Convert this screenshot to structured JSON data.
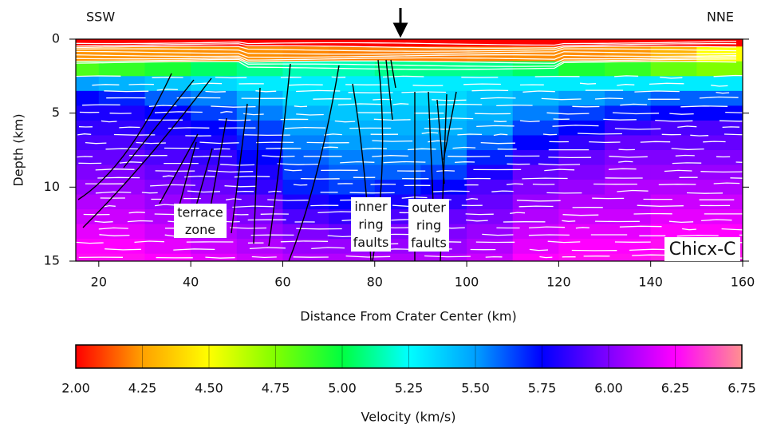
{
  "chart_data": {
    "type": "heatmap",
    "x_label": "Distance From Crater Center (km)",
    "y_label": "Depth (km)",
    "xlim": [
      15,
      160
    ],
    "xticks": [
      20,
      40,
      60,
      80,
      100,
      120,
      140,
      160
    ],
    "ylim": [
      0,
      15
    ],
    "yticks": [
      0,
      5,
      10,
      15
    ],
    "invert_y": true,
    "direction_labels": [
      "SSW",
      "NNE"
    ],
    "annotations": [
      {
        "text": [
          "terrace",
          "zone"
        ]
      },
      {
        "text": [
          "inner",
          "ring",
          "faults"
        ]
      },
      {
        "text": [
          "outer",
          "ring",
          "faults"
        ]
      },
      {
        "text": [
          "Chicx-C"
        ]
      }
    ],
    "x": [
      15,
      25,
      35,
      45,
      55,
      65,
      75,
      85,
      95,
      105,
      115,
      125,
      135,
      145,
      155
    ],
    "y": [
      0,
      1,
      2,
      3,
      4,
      5,
      6,
      7,
      8,
      9,
      10,
      11,
      12,
      13,
      14,
      15
    ],
    "values": [
      [
        2.0,
        2.0,
        2.0,
        2.0,
        2.0,
        2.0,
        2.0,
        2.0,
        2.0,
        2.0,
        2.0,
        2.0,
        2.0,
        2.0,
        2.0
      ],
      [
        4.1,
        4.1,
        4.1,
        4.0,
        4.0,
        3.9,
        3.8,
        3.8,
        3.8,
        3.9,
        4.0,
        4.0,
        4.1,
        4.3,
        4.5
      ],
      [
        4.85,
        4.9,
        4.95,
        5.05,
        5.1,
        5.15,
        5.15,
        5.1,
        5.1,
        5.1,
        5.05,
        4.95,
        4.9,
        4.8,
        4.75
      ],
      [
        5.5,
        5.45,
        5.4,
        5.35,
        5.3,
        5.3,
        5.3,
        5.3,
        5.3,
        5.3,
        5.3,
        5.3,
        5.3,
        5.3,
        5.3
      ],
      [
        5.75,
        5.7,
        5.6,
        5.55,
        5.45,
        5.35,
        5.35,
        5.35,
        5.35,
        5.4,
        5.45,
        5.5,
        5.55,
        5.6,
        5.6
      ],
      [
        5.8,
        5.8,
        5.75,
        5.65,
        5.55,
        5.45,
        5.4,
        5.4,
        5.4,
        5.45,
        5.55,
        5.65,
        5.7,
        5.75,
        5.75
      ],
      [
        5.85,
        5.85,
        5.8,
        5.75,
        5.65,
        5.5,
        5.45,
        5.45,
        5.45,
        5.5,
        5.65,
        5.75,
        5.85,
        5.9,
        5.9
      ],
      [
        5.9,
        5.9,
        5.85,
        5.8,
        5.7,
        5.55,
        5.5,
        5.5,
        5.5,
        5.6,
        5.75,
        5.85,
        5.95,
        5.95,
        5.95
      ],
      [
        5.95,
        5.95,
        5.9,
        5.85,
        5.75,
        5.6,
        5.55,
        5.55,
        5.55,
        5.7,
        5.85,
        5.95,
        6.0,
        6.0,
        6.0
      ],
      [
        6.0,
        6.0,
        5.95,
        5.9,
        5.8,
        5.65,
        5.6,
        5.6,
        5.65,
        5.8,
        5.95,
        6.0,
        6.05,
        6.05,
        6.05
      ],
      [
        6.05,
        6.05,
        6.0,
        5.95,
        5.85,
        5.7,
        5.65,
        5.7,
        5.75,
        5.9,
        6.0,
        6.05,
        6.1,
        6.1,
        6.1
      ],
      [
        6.1,
        6.1,
        6.05,
        6.0,
        5.95,
        5.8,
        5.75,
        5.8,
        5.85,
        5.95,
        6.05,
        6.1,
        6.1,
        6.15,
        6.15
      ],
      [
        6.15,
        6.15,
        6.1,
        6.05,
        6.0,
        5.9,
        5.85,
        5.9,
        5.95,
        6.0,
        6.1,
        6.15,
        6.15,
        6.2,
        6.2
      ],
      [
        6.2,
        6.2,
        6.15,
        6.1,
        6.05,
        6.0,
        5.95,
        6.0,
        6.0,
        6.05,
        6.15,
        6.2,
        6.2,
        6.25,
        6.25
      ],
      [
        6.25,
        6.25,
        6.2,
        6.15,
        6.1,
        6.05,
        6.05,
        6.05,
        6.05,
        6.1,
        6.2,
        6.25,
        6.25,
        6.3,
        6.3
      ],
      [
        6.3,
        6.3,
        6.25,
        6.2,
        6.15,
        6.1,
        6.1,
        6.1,
        6.1,
        6.15,
        6.25,
        6.3,
        6.3,
        6.35,
        6.35
      ]
    ],
    "colorbar": {
      "label": "Velocity (km/s)",
      "ticks": [
        {
          "value": 2,
          "label": "2.00"
        },
        {
          "value": 4.25,
          "label": "4.25"
        },
        {
          "value": 4.5,
          "label": "4.50"
        },
        {
          "value": 4.75,
          "label": "4.75"
        },
        {
          "value": 5,
          "label": "5.00"
        },
        {
          "value": 5.25,
          "label": "5.25"
        },
        {
          "value": 5.5,
          "label": "5.50"
        },
        {
          "value": 5.75,
          "label": "5.75"
        },
        {
          "value": 6,
          "label": "6.00"
        },
        {
          "value": 6.25,
          "label": "6.25"
        },
        {
          "value": 6.75,
          "label": "6.75"
        }
      ],
      "colors": [
        "#ff0000",
        "#ffa000",
        "#ffff00",
        "#80ff00",
        "#00ff40",
        "#00ffff",
        "#00a0ff",
        "#0000ff",
        "#8000ff",
        "#ff00ff",
        "#ff9090"
      ]
    }
  }
}
